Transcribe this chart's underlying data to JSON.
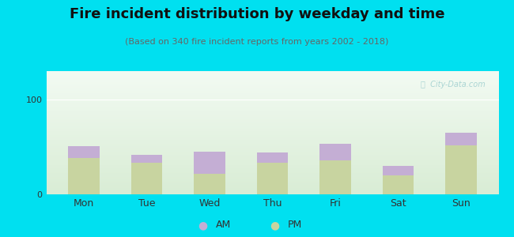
{
  "title": "Fire incident distribution by weekday and time",
  "subtitle": "(Based on 340 fire incident reports from years 2002 - 2018)",
  "categories": [
    "Mon",
    "Tue",
    "Wed",
    "Thu",
    "Fri",
    "Sat",
    "Sun"
  ],
  "pm_values": [
    38,
    33,
    22,
    33,
    36,
    20,
    52
  ],
  "am_values": [
    13,
    9,
    23,
    11,
    17,
    10,
    13
  ],
  "am_color": "#c4aed4",
  "pm_color": "#c8d4a0",
  "background_outer": "#00e0f0",
  "ylim": [
    0,
    130
  ],
  "yticks": [
    0,
    100
  ],
  "title_fontsize": 13,
  "subtitle_fontsize": 8,
  "watermark": "Ⓢ  City-Data.com",
  "bar_width": 0.5
}
